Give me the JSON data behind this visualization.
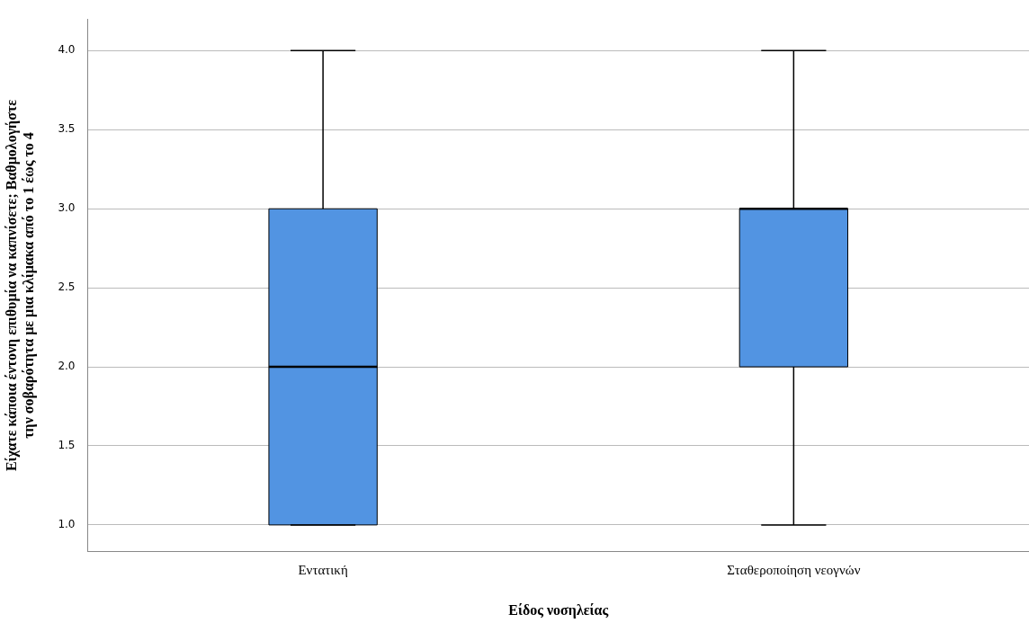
{
  "chart_data": {
    "type": "box",
    "xlabel": "Είδος νοσηλείας",
    "ylabel": "Είχατε κάποια έντονη επιθυμία να καπνίσετε; Βαθμολογήστε\nτην σοβαρότητα με μια κλίμακα από το 1 έως το 4",
    "categories": [
      "Εντατική",
      "Σταθεροποίηση νεογνών"
    ],
    "color": "#5294e2",
    "boxes": [
      {
        "low": 1,
        "q1": 1,
        "median": 2,
        "q3": 3,
        "high": 4
      },
      {
        "low": 1,
        "q1": 2,
        "median": 3,
        "q3": 3,
        "high": 4
      }
    ],
    "ylim": [
      0.83,
      4.2
    ],
    "yticks": [
      {
        "value": 1,
        "label": "1.0"
      },
      {
        "value": 1.5,
        "label": "1.5"
      },
      {
        "value": 2,
        "label": "2.0"
      },
      {
        "value": 2.5,
        "label": "2.5"
      },
      {
        "value": 3,
        "label": "3.0"
      },
      {
        "value": 3.5,
        "label": "3.5"
      },
      {
        "value": 4,
        "label": "4.0"
      }
    ],
    "grid": "y",
    "legend": false
  }
}
